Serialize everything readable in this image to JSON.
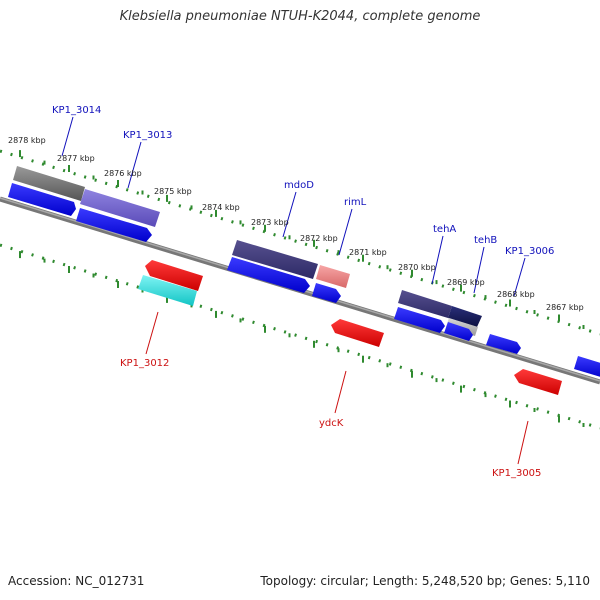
{
  "title": "Klebsiella pneumoniae NTUH-K2044, complete genome",
  "footer": {
    "accession": "Accession: NC_012731",
    "summary": "Topology: circular; Length: 5,248,520 bp; Genes: 5,110"
  },
  "colors": {
    "backbone": "#888888",
    "tick_green": "#2f8a2f",
    "plus_label": "#1111bb",
    "minus_label": "#cc1111",
    "kbp_text": "#222222"
  },
  "ruler_ticks_kbp": [
    "2878 kbp",
    "2877 kbp",
    "2876 kbp",
    "2875 kbp",
    "2874 kbp",
    "2873 kbp",
    "2872 kbp",
    "2871 kbp",
    "2870 kbp",
    "2869 kbp",
    "2868 kbp",
    "2867 kbp"
  ],
  "gene_labels_plus": [
    "KP1_3014",
    "KP1_3013",
    "mdoD",
    "rimL",
    "tehA",
    "tehB",
    "KP1_3006"
  ],
  "gene_labels_minus": [
    "KP1_3012",
    "ydcK",
    "KP1_3005"
  ]
}
